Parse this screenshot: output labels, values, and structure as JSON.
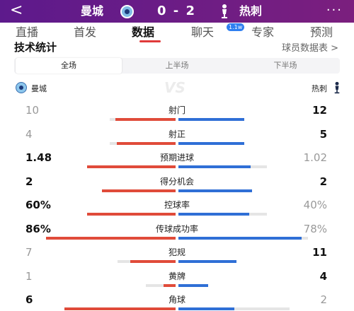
{
  "header": {
    "back": "<",
    "home_team": "曼城",
    "score": "0 - 2",
    "away_team": "热刺",
    "more": "···"
  },
  "tabs": [
    {
      "label": "直播",
      "active": false
    },
    {
      "label": "首发",
      "active": false
    },
    {
      "label": "数据",
      "active": true
    },
    {
      "label": "聊天",
      "active": false,
      "badge": "1.1w"
    },
    {
      "label": "专家",
      "active": false
    },
    {
      "label": "预测",
      "active": false
    }
  ],
  "section": {
    "title": "技术统计",
    "link": "球员数据表 >"
  },
  "segments": [
    {
      "label": "全场",
      "active": true
    },
    {
      "label": "上半场",
      "active": false
    },
    {
      "label": "下半场",
      "active": false
    }
  ],
  "legend": {
    "home": "曼城",
    "vs": "VS",
    "away": "热刺"
  },
  "colors": {
    "home": "#e04b3a",
    "away": "#2f6fd6",
    "track": "#e5e5e5",
    "header_start": "#5d1a8c",
    "header_end": "#7b1f7e"
  },
  "stats": [
    {
      "label": "射门",
      "home": "10",
      "away": "12",
      "home_num": 10,
      "away_num": 12
    },
    {
      "label": "射正",
      "home": "4",
      "away": "5",
      "home_num": 4,
      "away_num": 5
    },
    {
      "label": "预期进球",
      "home": "1.48",
      "away": "1.02",
      "home_num": 1.48,
      "away_num": 1.02
    },
    {
      "label": "得分机会",
      "home": "2",
      "away": "2",
      "home_num": 2,
      "away_num": 2
    },
    {
      "label": "控球率",
      "home": "60%",
      "away": "40%",
      "home_num": 60,
      "away_num": 40
    },
    {
      "label": "传球成功率",
      "home": "86%",
      "away": "78%",
      "home_num": 86,
      "away_num": 78
    },
    {
      "label": "犯规",
      "home": "7",
      "away": "11",
      "home_num": 7,
      "away_num": 11
    },
    {
      "label": "黄牌",
      "home": "1",
      "away": "4",
      "home_num": 1,
      "away_num": 4
    },
    {
      "label": "角球",
      "home": "6",
      "away": "2",
      "home_num": 6,
      "away_num": 2
    }
  ]
}
